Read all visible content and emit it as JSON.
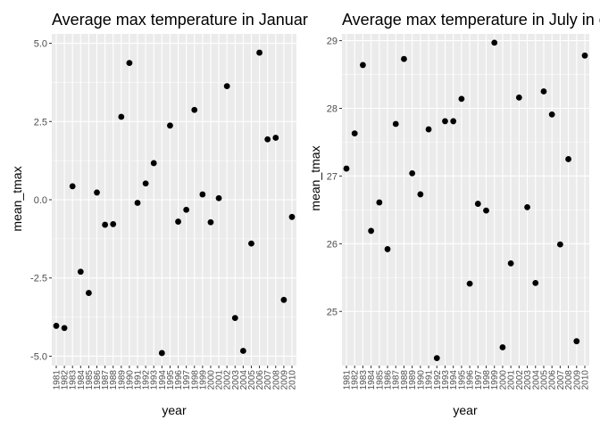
{
  "chart_data": [
    {
      "type": "scatter",
      "title": "Average max temperature in Januar",
      "xlabel": "year",
      "ylabel": "mean_tmax",
      "xlim": [
        1981,
        2010
      ],
      "ylim": [
        -5.3,
        5.3
      ],
      "yticks": [
        5.0,
        2.5,
        0.0,
        -2.5,
        -5.0
      ],
      "ytick_labels": [
        "5.0",
        "2.5",
        "0.0",
        "-2.5",
        "-5.0"
      ],
      "grid": true,
      "x": [
        1981,
        1982,
        1983,
        1984,
        1985,
        1986,
        1987,
        1988,
        1989,
        1990,
        1991,
        1992,
        1993,
        1994,
        1995,
        1996,
        1997,
        1998,
        1999,
        2000,
        2001,
        2002,
        2003,
        2004,
        2005,
        2006,
        2007,
        2008,
        2009,
        2010
      ],
      "y": [
        -4.03,
        -4.1,
        0.43,
        -2.3,
        -2.98,
        0.23,
        -0.8,
        -0.78,
        2.65,
        4.37,
        -0.1,
        0.52,
        1.17,
        -4.9,
        2.37,
        -0.7,
        -0.32,
        2.87,
        0.17,
        -0.72,
        0.05,
        3.63,
        -3.78,
        -4.83,
        -1.4,
        4.7,
        1.93,
        1.98,
        -3.2,
        -0.55
      ]
    },
    {
      "type": "scatter",
      "title": "Average max temperature in July in e",
      "xlabel": "year",
      "ylabel": "mean_tmax",
      "xlim": [
        1981,
        2010
      ],
      "ylim": [
        24.2,
        29.1
      ],
      "yticks": [
        29,
        28,
        27,
        26,
        25
      ],
      "ytick_labels": [
        "29",
        "28",
        "27",
        "26",
        "25"
      ],
      "grid": true,
      "x": [
        1981,
        1982,
        1983,
        1984,
        1985,
        1986,
        1987,
        1988,
        1989,
        1990,
        1991,
        1992,
        1993,
        1994,
        1995,
        1996,
        1997,
        1998,
        1999,
        2000,
        2001,
        2002,
        2003,
        2004,
        2005,
        2006,
        2007,
        2008,
        2009,
        2010
      ],
      "y": [
        27.11,
        27.63,
        28.64,
        26.19,
        26.61,
        25.92,
        27.77,
        28.73,
        27.04,
        26.73,
        27.69,
        24.31,
        27.81,
        27.81,
        28.14,
        25.41,
        26.59,
        26.49,
        28.97,
        24.47,
        25.71,
        28.16,
        26.54,
        25.42,
        28.25,
        27.91,
        25.99,
        27.25,
        24.56,
        28.78
      ]
    }
  ],
  "x_tick_labels": [
    "1981",
    "1982",
    "1983",
    "1984",
    "1985",
    "1986",
    "1987",
    "1988",
    "1989",
    "1990",
    "1991",
    "1992",
    "1993",
    "1994",
    "1995",
    "1996",
    "1997",
    "1998",
    "1999",
    "2000",
    "2001",
    "2002",
    "2003",
    "2004",
    "2005",
    "2006",
    "2007",
    "2008",
    "2009",
    "2010"
  ]
}
